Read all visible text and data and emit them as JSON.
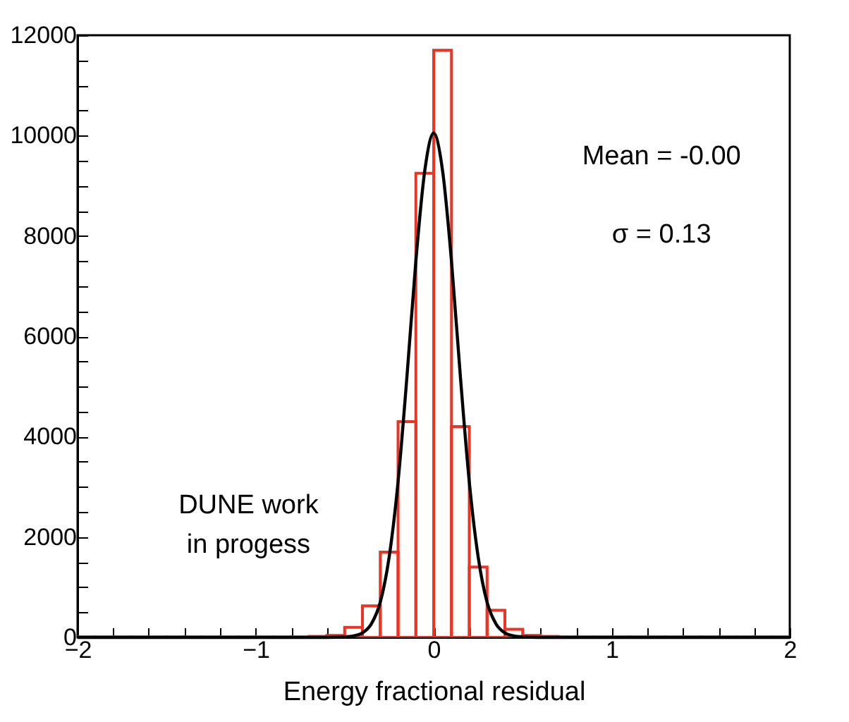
{
  "chart_data": {
    "type": "histogram",
    "xlabel": "Energy fractional residual",
    "bins": [
      -2,
      -1.9,
      -1.8,
      -1.7,
      -1.6,
      -1.5,
      -1.4,
      -1.3,
      -1.2,
      -1.1,
      -1,
      -0.9,
      -0.8,
      -0.7,
      -0.6,
      -0.5,
      -0.4,
      -0.3,
      -0.2,
      -0.1,
      0,
      0.1,
      0.2,
      0.3,
      0.4,
      0.5,
      0.6,
      0.7,
      0.8,
      0.9,
      1,
      1.1,
      1.2,
      1.3,
      1.4,
      1.5,
      1.6,
      1.7,
      1.8,
      1.9,
      2
    ],
    "series": [
      {
        "color": "#ee3322",
        "values": [
          10,
          10,
          10,
          10,
          10,
          10,
          10,
          10,
          10,
          10,
          10,
          10,
          10,
          20,
          40,
          200,
          630,
          1700,
          4300,
          9250,
          11700,
          4200,
          1400,
          540,
          160,
          40,
          20,
          10,
          10,
          10,
          10,
          10,
          10,
          10,
          10,
          10,
          10,
          10,
          10,
          10
        ]
      },
      {
        "type": "line",
        "color": "#000000",
        "x": [
          -2,
          -0.6,
          -0.5,
          -0.45,
          -0.4,
          -0.35,
          -0.3,
          -0.25,
          -0.2,
          -0.15,
          -0.1,
          -0.05,
          0,
          0.05,
          0.1,
          0.15,
          0.2,
          0.25,
          0.3,
          0.35,
          0.4,
          0.45,
          0.5,
          0.6,
          2
        ],
        "values": [
          0,
          0,
          10,
          30,
          90,
          270,
          700,
          1600,
          3100,
          5200,
          7500,
          9300,
          10050,
          9300,
          7500,
          5200,
          3100,
          1600,
          700,
          270,
          90,
          30,
          10,
          0,
          0
        ]
      }
    ],
    "xlim": [
      -2,
      2
    ],
    "xticks": [
      {
        "value": -2,
        "label": "−2"
      },
      {
        "value": -1.8,
        "label": null
      },
      {
        "value": -1.6,
        "label": null
      },
      {
        "value": -1.4,
        "label": null
      },
      {
        "value": -1.2,
        "label": null
      },
      {
        "value": -1,
        "label": "−1"
      },
      {
        "value": -0.8,
        "label": null
      },
      {
        "value": -0.6,
        "label": null
      },
      {
        "value": -0.4,
        "label": null
      },
      {
        "value": -0.2,
        "label": null
      },
      0,
      {
        "value": 0.2,
        "label": null
      },
      {
        "value": 0.4,
        "label": null
      },
      {
        "value": 0.6,
        "label": null
      },
      {
        "value": 0.8,
        "label": null
      },
      1,
      {
        "value": 1.2,
        "label": null
      },
      {
        "value": 1.4,
        "label": null
      },
      {
        "value": 1.6,
        "label": null
      },
      {
        "value": 1.8,
        "label": null
      },
      2
    ],
    "ylim": [
      0,
      12000
    ],
    "yticks": [
      0,
      {
        "value": 500,
        "label": null
      },
      {
        "value": 1000,
        "label": null
      },
      {
        "value": 1500,
        "label": null
      },
      2000,
      {
        "value": 2500,
        "label": null
      },
      {
        "value": 3000,
        "label": null
      },
      {
        "value": 3500,
        "label": null
      },
      4000,
      {
        "value": 4500,
        "label": null
      },
      {
        "value": 5000,
        "label": null
      },
      {
        "value": 5500,
        "label": null
      },
      6000,
      {
        "value": 6500,
        "label": null
      },
      {
        "value": 7000,
        "label": null
      },
      {
        "value": 7500,
        "label": null
      },
      8000,
      {
        "value": 8500,
        "label": null
      },
      {
        "value": 9000,
        "label": null
      },
      {
        "value": 9500,
        "label": null
      },
      10000,
      {
        "value": 10500,
        "label": null
      },
      {
        "value": 11000,
        "label": null
      },
      {
        "value": 11500,
        "label": null
      },
      12000
    ],
    "annotations": [
      "Mean = -0.00",
      "σ = 0.13",
      "DUNE work\nin progess"
    ],
    "grid": false
  }
}
